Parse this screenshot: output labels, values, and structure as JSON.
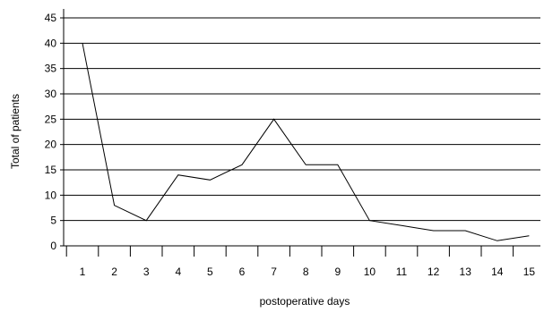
{
  "chart_data": {
    "type": "line",
    "title": "",
    "xlabel": "postoperative days",
    "ylabel": "Total of patients",
    "categories": [
      "1",
      "2",
      "3",
      "4",
      "5",
      "6",
      "7",
      "8",
      "9",
      "10",
      "11",
      "12",
      "13",
      "14",
      "15"
    ],
    "series": [
      {
        "values": [
          40,
          8,
          5,
          14,
          13,
          16,
          25,
          16,
          16,
          5,
          4,
          3,
          3,
          1,
          2
        ],
        "color": "#000000"
      }
    ],
    "ylim": [
      0,
      45
    ],
    "yticks": [
      0,
      5,
      10,
      15,
      20,
      25,
      30,
      35,
      40,
      45
    ],
    "grid": "horizontal",
    "legend": "none"
  }
}
